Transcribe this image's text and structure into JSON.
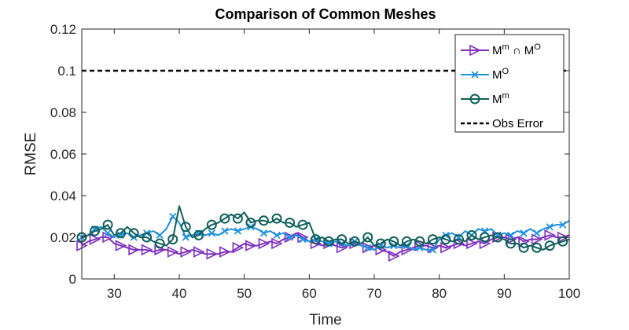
{
  "chart_data": {
    "type": "line",
    "title": "Comparison of Common Meshes",
    "xlabel": "Time",
    "ylabel": "RMSE",
    "xlim": [
      25,
      100
    ],
    "ylim": [
      0,
      0.12
    ],
    "xticks": [
      30,
      40,
      50,
      60,
      70,
      80,
      90,
      100
    ],
    "yticks": [
      0,
      0.02,
      0.04,
      0.06,
      0.08,
      0.1,
      0.12
    ],
    "ytick_labels": [
      "0",
      "0.02",
      "0.04",
      "0.06",
      "0.08",
      "0.1",
      "0.12"
    ],
    "legend": {
      "position": "top-right",
      "entries": [
        {
          "base": "M",
          "sup": "m",
          "mid": " ∩ M",
          "sup2": "O"
        },
        {
          "base": "M",
          "sup": "O",
          "mid": "",
          "sup2": ""
        },
        {
          "base": "M",
          "sup": "m",
          "mid": "",
          "sup2": ""
        },
        {
          "base": "Obs Error",
          "sup": "",
          "mid": "",
          "sup2": ""
        }
      ]
    },
    "colors": {
      "intersection": "#7E2FBE",
      "mo": "#1E90E0",
      "mm": "#0F5F5A",
      "obs": "#000000"
    },
    "reference_line": {
      "name": "Obs Error",
      "value": 0.1
    },
    "series": [
      {
        "name": "Mm ∩ MO",
        "key": "intersection",
        "marker": "triangle-right",
        "marker_every": 2,
        "x": [
          25,
          26,
          27,
          28,
          29,
          30,
          31,
          32,
          33,
          34,
          35,
          36,
          37,
          38,
          39,
          40,
          41,
          42,
          43,
          44,
          45,
          46,
          47,
          48,
          49,
          50,
          51,
          52,
          53,
          54,
          55,
          56,
          57,
          58,
          59,
          60,
          61,
          62,
          63,
          64,
          65,
          66,
          67,
          68,
          69,
          70,
          71,
          72,
          73,
          74,
          75,
          76,
          77,
          78,
          79,
          80,
          81,
          82,
          83,
          84,
          85,
          86,
          87,
          88,
          89,
          90,
          91,
          92,
          93,
          94,
          95,
          96,
          97,
          98,
          99,
          100
        ],
        "y": [
          0.016,
          0.018,
          0.019,
          0.02,
          0.02,
          0.017,
          0.016,
          0.015,
          0.014,
          0.014,
          0.014,
          0.013,
          0.014,
          0.014,
          0.013,
          0.012,
          0.013,
          0.014,
          0.013,
          0.012,
          0.012,
          0.012,
          0.013,
          0.013,
          0.015,
          0.017,
          0.016,
          0.016,
          0.017,
          0.018,
          0.017,
          0.019,
          0.02,
          0.022,
          0.02,
          0.018,
          0.017,
          0.016,
          0.017,
          0.016,
          0.015,
          0.016,
          0.017,
          0.016,
          0.015,
          0.016,
          0.014,
          0.013,
          0.011,
          0.013,
          0.014,
          0.015,
          0.016,
          0.016,
          0.015,
          0.016,
          0.015,
          0.016,
          0.017,
          0.016,
          0.017,
          0.018,
          0.017,
          0.019,
          0.02,
          0.02,
          0.019,
          0.02,
          0.018,
          0.019,
          0.019,
          0.02,
          0.021,
          0.02,
          0.02,
          0.021
        ]
      },
      {
        "name": "MO",
        "key": "mo",
        "marker": "x",
        "marker_every": 2,
        "x": [
          25,
          26,
          27,
          28,
          29,
          30,
          31,
          32,
          33,
          34,
          35,
          36,
          37,
          38,
          39,
          40,
          41,
          42,
          43,
          44,
          45,
          46,
          47,
          48,
          49,
          50,
          51,
          52,
          53,
          54,
          55,
          56,
          57,
          58,
          59,
          60,
          61,
          62,
          63,
          64,
          65,
          66,
          67,
          68,
          69,
          70,
          71,
          72,
          73,
          74,
          75,
          76,
          77,
          78,
          79,
          80,
          81,
          82,
          83,
          84,
          85,
          86,
          87,
          88,
          89,
          90,
          91,
          92,
          93,
          94,
          95,
          96,
          97,
          98,
          99,
          100
        ],
        "y": [
          0.02,
          0.021,
          0.024,
          0.025,
          0.022,
          0.02,
          0.021,
          0.022,
          0.02,
          0.021,
          0.022,
          0.023,
          0.021,
          0.024,
          0.03,
          0.027,
          0.02,
          0.021,
          0.022,
          0.021,
          0.022,
          0.021,
          0.023,
          0.024,
          0.023,
          0.024,
          0.025,
          0.024,
          0.022,
          0.023,
          0.021,
          0.022,
          0.02,
          0.021,
          0.019,
          0.018,
          0.019,
          0.018,
          0.017,
          0.018,
          0.017,
          0.016,
          0.018,
          0.016,
          0.015,
          0.014,
          0.016,
          0.015,
          0.016,
          0.015,
          0.016,
          0.014,
          0.015,
          0.014,
          0.014,
          0.019,
          0.021,
          0.022,
          0.02,
          0.023,
          0.021,
          0.024,
          0.023,
          0.024,
          0.021,
          0.022,
          0.021,
          0.023,
          0.022,
          0.024,
          0.022,
          0.024,
          0.025,
          0.026,
          0.026,
          0.028
        ]
      },
      {
        "name": "Mm",
        "key": "mm",
        "marker": "circle",
        "marker_every": 2,
        "x": [
          25,
          26,
          27,
          28,
          29,
          30,
          31,
          32,
          33,
          34,
          35,
          36,
          37,
          38,
          39,
          40,
          41,
          42,
          43,
          44,
          45,
          46,
          47,
          48,
          49,
          50,
          51,
          52,
          53,
          54,
          55,
          56,
          57,
          58,
          59,
          60,
          61,
          62,
          63,
          64,
          65,
          66,
          67,
          68,
          69,
          70,
          71,
          72,
          73,
          74,
          75,
          76,
          77,
          78,
          79,
          80,
          81,
          82,
          83,
          84,
          85,
          86,
          87,
          88,
          89,
          90,
          91,
          92,
          93,
          94,
          95,
          96,
          97,
          98,
          99,
          100
        ],
        "y": [
          0.02,
          0.021,
          0.023,
          0.024,
          0.026,
          0.021,
          0.022,
          0.025,
          0.022,
          0.02,
          0.02,
          0.018,
          0.017,
          0.016,
          0.019,
          0.035,
          0.025,
          0.02,
          0.021,
          0.024,
          0.026,
          0.027,
          0.029,
          0.031,
          0.029,
          0.032,
          0.027,
          0.028,
          0.028,
          0.027,
          0.029,
          0.027,
          0.027,
          0.025,
          0.026,
          0.027,
          0.019,
          0.02,
          0.018,
          0.019,
          0.019,
          0.017,
          0.018,
          0.017,
          0.02,
          0.016,
          0.017,
          0.019,
          0.018,
          0.016,
          0.018,
          0.019,
          0.018,
          0.017,
          0.019,
          0.02,
          0.019,
          0.018,
          0.019,
          0.018,
          0.021,
          0.019,
          0.02,
          0.021,
          0.02,
          0.019,
          0.017,
          0.017,
          0.015,
          0.016,
          0.015,
          0.014,
          0.016,
          0.017,
          0.018,
          0.019
        ]
      }
    ]
  }
}
